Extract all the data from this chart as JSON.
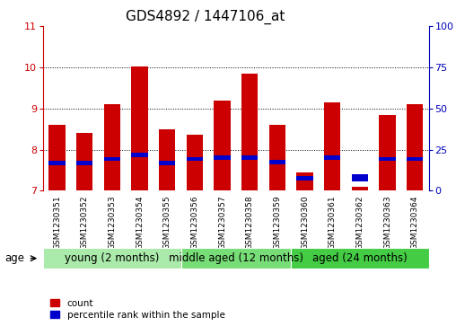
{
  "title": "GDS4892 / 1447106_at",
  "samples": [
    "GSM1230351",
    "GSM1230352",
    "GSM1230353",
    "GSM1230354",
    "GSM1230355",
    "GSM1230356",
    "GSM1230357",
    "GSM1230358",
    "GSM1230359",
    "GSM1230360",
    "GSM1230361",
    "GSM1230362",
    "GSM1230363",
    "GSM1230364"
  ],
  "count_values": [
    8.6,
    8.4,
    9.1,
    10.02,
    8.5,
    8.35,
    9.2,
    9.85,
    8.6,
    7.45,
    9.15,
    7.1,
    8.85,
    9.1
  ],
  "percentile_values": [
    7.62,
    7.62,
    7.72,
    7.82,
    7.62,
    7.72,
    7.75,
    7.75,
    7.65,
    7.25,
    7.75,
    7.22,
    7.72,
    7.72
  ],
  "percentile_heights": [
    0.1,
    0.1,
    0.1,
    0.1,
    0.1,
    0.1,
    0.1,
    0.1,
    0.1,
    0.1,
    0.1,
    0.18,
    0.1,
    0.1
  ],
  "ylim_left": [
    7,
    11
  ],
  "ylim_right": [
    0,
    100
  ],
  "yticks_left": [
    7,
    8,
    9,
    10,
    11
  ],
  "yticks_right": [
    0,
    25,
    50,
    75,
    100
  ],
  "group_ends": [
    5,
    9,
    14
  ],
  "group_labels": [
    "young (2 months)",
    "middle aged (12 months)",
    "aged (24 months)"
  ],
  "group_colors": [
    "#aaeaaa",
    "#77dd77",
    "#44cc44"
  ],
  "bar_color_red": "#cc0000",
  "bar_color_blue": "#0000cc",
  "bar_width": 0.6,
  "left_axis_color": "#cc0000",
  "right_axis_color": "#0000bb",
  "tick_label_bg": "#cccccc",
  "age_label": "age",
  "legend_count": "count",
  "legend_percentile": "percentile rank within the sample",
  "title_fontsize": 11,
  "tick_fontsize": 6.5,
  "group_label_fontsize": 8.5
}
